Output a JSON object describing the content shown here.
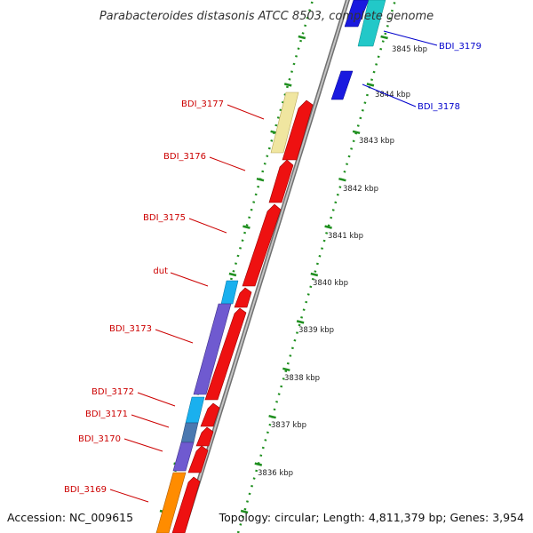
{
  "title": "Parabacteroides distasonis ATCC 8503, complete genome",
  "footer": {
    "accession": "Accession: NC_009615",
    "stats": "Topology: circular; Length: 4,811,379 bp; Genes: 3,954"
  },
  "colors": {
    "left_label": "#cc0000",
    "right_label": "#0000cc",
    "backbone": "#888888",
    "tick": "#1f8f1f"
  },
  "kbp_labels": [
    "3845 kbp",
    "3844 kbp",
    "3843 kbp",
    "3842 kbp",
    "3841 kbp",
    "3840 kbp",
    "3839 kbp",
    "3838 kbp",
    "3837 kbp",
    "3836 kbp"
  ],
  "gene_labels": {
    "bdi_3179": "BDI_3179",
    "bdi_3178": "BDI_3178",
    "bdi_3177": "BDI_3177",
    "bdi_3176": "BDI_3176",
    "bdi_3175": "BDI_3175",
    "dut": "dut",
    "bdi_3173": "BDI_3173",
    "bdi_3172": "BDI_3172",
    "bdi_3171": "BDI_3171",
    "bdi_3170": "BDI_3170",
    "bdi_3169": "BDI_3169"
  }
}
